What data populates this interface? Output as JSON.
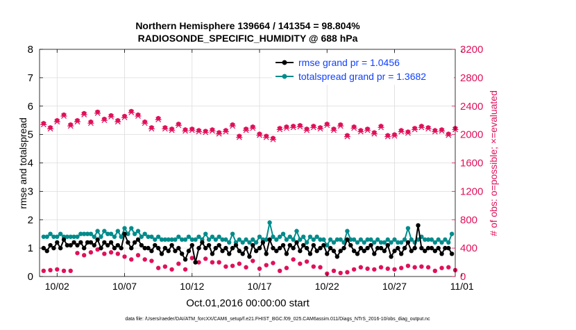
{
  "chart_data": {
    "type": "line",
    "title": [
      "Northern Hemisphere 139664 / 141354 = 98.804%",
      "RADIOSONDE_SPECIFIC_HUMIDITY @ 688 hPa"
    ],
    "xlabel": "Oct.01,2016 00:00:00 start",
    "ylabel_left": "rmse and totalspread",
    "ylabel_right": "# of obs: o=possible; ×=evaluated",
    "footer": "data file: /Users/raeder/DAI/ATM_forcXX/CAM6_setup/f.e21.FHIST_BGC.f09_025.CAM6assim.011/Diags_NTrS_2016-10/obs_diag_output.nc",
    "x_range": [
      0.7,
      31.5
    ],
    "xticks": [
      2,
      7,
      12,
      17,
      22,
      27,
      32
    ],
    "xtick_labels": [
      "10/02",
      "10/07",
      "10/12",
      "10/17",
      "10/22",
      "10/27",
      "11/01"
    ],
    "ylim_left": [
      0,
      8
    ],
    "yticks_left": [
      0,
      1,
      2,
      3,
      4,
      5,
      6,
      7,
      8
    ],
    "ylim_right": [
      0,
      3200
    ],
    "yticks_right": [
      0,
      400,
      800,
      1200,
      1600,
      2000,
      2400,
      2800,
      3200
    ],
    "grid": true,
    "legend_position": "top-right",
    "colors": {
      "rmse": "#000000",
      "totalspread": "#008b8b",
      "obs": "#e0105a",
      "legend_text": "#1040ff"
    },
    "obs_series": [
      {
        "kind": "possible",
        "marker": "o",
        "x": [
          1.0,
          1.5,
          2.0,
          2.5,
          3.0,
          3.5,
          4.0,
          4.5,
          5.0,
          5.5,
          6.0,
          6.5,
          7.0,
          7.5,
          8.0,
          8.5,
          9.0,
          9.5,
          10.0,
          10.5,
          11.0,
          11.5,
          12.0,
          12.5,
          13.0,
          13.5,
          14.0,
          14.5,
          15.0,
          15.5,
          16.0,
          16.5,
          17.0,
          17.5,
          18.0,
          18.5,
          19.0,
          19.5,
          20.0,
          20.5,
          21.0,
          21.5,
          22.0,
          22.5,
          23.0,
          23.5,
          24.0,
          24.5,
          25.0,
          25.5,
          26.0,
          26.5,
          27.0,
          27.5,
          28.0,
          28.5,
          29.0,
          29.5,
          30.0,
          30.5,
          31.0,
          31.5
        ],
        "values": [
          2160,
          2100,
          2200,
          2280,
          2140,
          2200,
          2300,
          2180,
          2320,
          2220,
          2270,
          2200,
          2260,
          2330,
          2280,
          2180,
          2100,
          2230,
          2100,
          2080,
          2150,
          2070,
          2080,
          2060,
          2050,
          2070,
          2030,
          2060,
          2140,
          1980,
          2080,
          2110,
          2010,
          1980,
          1950,
          2090,
          2110,
          2120,
          2130,
          2080,
          2120,
          2100,
          2150,
          2080,
          2140,
          1990,
          2110,
          2060,
          2080,
          2030,
          2120,
          1990,
          2000,
          2060,
          2040,
          2090,
          2120,
          2100,
          2060,
          2070,
          2010,
          2090
        ],
        "values_evaluated_hidden": true
      },
      {
        "kind": "evaluated",
        "marker": "x",
        "x": [
          1.0,
          1.5,
          2.0,
          2.5,
          3.0,
          3.5,
          4.0,
          4.5,
          5.0,
          5.5,
          6.0,
          6.5,
          7.0,
          7.5,
          8.0,
          8.5,
          9.0,
          9.5,
          10.0,
          10.5,
          11.0,
          11.5,
          12.0,
          12.5,
          13.0,
          13.5,
          14.0,
          14.5,
          15.0,
          15.5,
          16.0,
          16.5,
          17.0,
          17.5,
          18.0,
          18.5,
          19.0,
          19.5,
          20.0,
          20.5,
          21.0,
          21.5,
          22.0,
          22.5,
          23.0,
          23.5,
          24.0,
          24.5,
          25.0,
          25.5,
          26.0,
          26.5,
          27.0,
          27.5,
          28.0,
          28.5,
          29.0,
          29.5,
          30.0,
          30.5,
          31.0,
          31.5
        ],
        "values": [
          2140,
          2080,
          2180,
          2260,
          2120,
          2180,
          2280,
          2160,
          2300,
          2200,
          2250,
          2180,
          2240,
          2310,
          2260,
          2160,
          2080,
          2210,
          2080,
          2060,
          2130,
          2050,
          2060,
          2040,
          2030,
          2050,
          2010,
          2040,
          2120,
          1960,
          2060,
          2090,
          1990,
          1960,
          1930,
          2070,
          2090,
          2100,
          2110,
          2060,
          2100,
          2080,
          2130,
          2060,
          2120,
          1970,
          2090,
          2040,
          2060,
          2010,
          2100,
          1970,
          1980,
          2040,
          2020,
          2070,
          2100,
          2080,
          2040,
          2050,
          1990,
          2070
        ]
      },
      {
        "kind": "possible-low",
        "marker": "o",
        "x": [
          1.0,
          1.5,
          2.0,
          2.5,
          3.0,
          3.5,
          4.0,
          4.5,
          5.0,
          5.5,
          6.0,
          6.5,
          7.0,
          7.5,
          8.0,
          8.5,
          9.0,
          9.5,
          10.0,
          10.5,
          11.0,
          11.5,
          12.0,
          12.5,
          13.0,
          13.5,
          14.0,
          14.5,
          15.0,
          15.5,
          16.0,
          16.5,
          17.0,
          17.5,
          18.0,
          18.5,
          19.0,
          19.5,
          20.0,
          20.5,
          21.0,
          21.5,
          22.0,
          22.5,
          23.0,
          23.5,
          24.0,
          24.5,
          25.0,
          25.5,
          26.0,
          26.5,
          27.0,
          27.5,
          28.0,
          28.5,
          29.0,
          29.5,
          30.0,
          30.5,
          31.0,
          31.5
        ],
        "values": [
          80,
          90,
          100,
          80,
          80,
          330,
          300,
          340,
          380,
          320,
          340,
          320,
          280,
          240,
          300,
          240,
          220,
          120,
          140,
          100,
          180,
          100,
          260,
          200,
          250,
          200,
          200,
          140,
          150,
          180,
          130,
          220,
          110,
          160,
          190,
          80,
          120,
          240,
          180,
          210,
          140,
          130,
          40,
          80,
          50,
          60,
          100,
          130,
          110,
          100,
          130,
          110,
          100,
          120,
          150,
          130,
          140,
          130,
          80,
          120,
          130,
          90
        ]
      }
    ],
    "series": [
      {
        "name": "rmse grand pr = 1.0456",
        "marker": "o",
        "x": [
          1.0,
          1.25,
          1.5,
          1.75,
          2.0,
          2.25,
          2.5,
          2.75,
          3.0,
          3.25,
          3.5,
          3.75,
          4.0,
          4.25,
          4.5,
          4.75,
          5.0,
          5.25,
          5.5,
          5.75,
          6.0,
          6.25,
          6.5,
          6.75,
          7.0,
          7.25,
          7.5,
          7.75,
          8.0,
          8.25,
          8.5,
          8.75,
          9.0,
          9.25,
          9.5,
          9.75,
          10.0,
          10.25,
          10.5,
          10.75,
          11.0,
          11.25,
          11.5,
          11.75,
          12.0,
          12.25,
          12.5,
          12.75,
          13.0,
          13.25,
          13.5,
          13.75,
          14.0,
          14.25,
          14.5,
          14.75,
          15.0,
          15.25,
          15.5,
          15.75,
          16.0,
          16.25,
          16.5,
          16.75,
          17.0,
          17.25,
          17.5,
          17.75,
          18.0,
          18.25,
          18.5,
          18.75,
          19.0,
          19.25,
          19.5,
          19.75,
          20.0,
          20.25,
          20.5,
          20.75,
          21.0,
          21.25,
          21.5,
          21.75,
          22.0,
          22.25,
          22.5,
          22.75,
          23.0,
          23.25,
          23.5,
          23.75,
          24.0,
          24.25,
          24.5,
          24.75,
          25.0,
          25.25,
          25.5,
          25.75,
          26.0,
          26.25,
          26.5,
          26.75,
          27.0,
          27.25,
          27.5,
          27.75,
          28.0,
          28.25,
          28.5,
          28.75,
          29.0,
          29.25,
          29.5,
          29.75,
          30.0,
          30.25,
          30.5,
          30.75,
          31.0,
          31.25
        ],
        "values": [
          1.0,
          0.9,
          1.1,
          1.0,
          1.2,
          1.0,
          1.3,
          1.1,
          1.1,
          1.2,
          1.1,
          1.2,
          1.0,
          1.2,
          1.2,
          1.1,
          1.3,
          1.0,
          1.2,
          1.1,
          1.2,
          1.0,
          1.1,
          1.0,
          1.5,
          1.2,
          1.0,
          1.2,
          1.3,
          1.1,
          1.0,
          1.0,
          0.9,
          1.1,
          1.0,
          0.8,
          1.0,
          0.9,
          1.1,
          0.9,
          1.0,
          0.8,
          0.6,
          0.9,
          1.1,
          0.5,
          1.0,
          1.2,
          1.0,
          1.1,
          0.8,
          1.0,
          1.1,
          0.9,
          1.0,
          0.8,
          1.0,
          1.1,
          0.9,
          0.8,
          1.0,
          0.7,
          1.1,
          0.9,
          1.0,
          1.2,
          0.8,
          1.3,
          1.0,
          0.9,
          1.0,
          1.1,
          0.8,
          1.1,
          1.0,
          1.2,
          0.9,
          1.1,
          1.0,
          0.8,
          1.1,
          0.9,
          1.0,
          1.1,
          0.8,
          1.0,
          0.9,
          0.7,
          0.9,
          1.0,
          1.3,
          1.1,
          0.9,
          0.8,
          1.0,
          0.9,
          1.0,
          1.1,
          0.8,
          1.0,
          1.0,
          0.9,
          1.1,
          0.7,
          0.9,
          1.0,
          0.8,
          1.0,
          1.2,
          0.9,
          1.0,
          1.8,
          1.0,
          0.9,
          1.0,
          1.0,
          0.9,
          1.0,
          0.8,
          1.0,
          1.0,
          0.8
        ]
      },
      {
        "name": "totalspread grand pr = 1.3682",
        "marker": "o",
        "x": [
          1.0,
          1.25,
          1.5,
          1.75,
          2.0,
          2.25,
          2.5,
          2.75,
          3.0,
          3.25,
          3.5,
          3.75,
          4.0,
          4.25,
          4.5,
          4.75,
          5.0,
          5.25,
          5.5,
          5.75,
          6.0,
          6.25,
          6.5,
          6.75,
          7.0,
          7.25,
          7.5,
          7.75,
          8.0,
          8.25,
          8.5,
          8.75,
          9.0,
          9.25,
          9.5,
          9.75,
          10.0,
          10.25,
          10.5,
          10.75,
          11.0,
          11.25,
          11.5,
          11.75,
          12.0,
          12.25,
          12.5,
          12.75,
          13.0,
          13.25,
          13.5,
          13.75,
          14.0,
          14.25,
          14.5,
          14.75,
          15.0,
          15.25,
          15.5,
          15.75,
          16.0,
          16.25,
          16.5,
          16.75,
          17.0,
          17.25,
          17.5,
          17.75,
          18.0,
          18.25,
          18.5,
          18.75,
          19.0,
          19.25,
          19.5,
          19.75,
          20.0,
          20.25,
          20.5,
          20.75,
          21.0,
          21.25,
          21.5,
          21.75,
          22.0,
          22.25,
          22.5,
          22.75,
          23.0,
          23.25,
          23.5,
          23.75,
          24.0,
          24.25,
          24.5,
          24.75,
          25.0,
          25.25,
          25.5,
          25.75,
          26.0,
          26.25,
          26.5,
          26.75,
          27.0,
          27.25,
          27.5,
          27.75,
          28.0,
          28.25,
          28.5,
          28.75,
          29.0,
          29.25,
          29.5,
          29.75,
          30.0,
          30.25,
          30.5,
          30.75,
          31.0,
          31.25
        ],
        "values": [
          1.4,
          1.4,
          1.5,
          1.4,
          1.4,
          1.5,
          1.4,
          1.4,
          1.4,
          1.4,
          1.4,
          1.5,
          1.5,
          1.5,
          1.5,
          1.4,
          1.6,
          1.4,
          1.6,
          1.5,
          1.5,
          1.4,
          1.6,
          1.4,
          1.7,
          1.5,
          1.7,
          1.5,
          1.6,
          1.4,
          1.5,
          1.4,
          1.4,
          1.3,
          1.4,
          1.3,
          1.3,
          1.3,
          1.3,
          1.3,
          1.4,
          1.3,
          1.3,
          1.4,
          1.3,
          1.3,
          1.4,
          1.3,
          1.5,
          1.3,
          1.4,
          1.3,
          1.4,
          1.3,
          1.3,
          1.2,
          1.5,
          1.2,
          1.3,
          1.2,
          1.3,
          1.2,
          1.3,
          1.2,
          1.4,
          1.3,
          1.3,
          1.9,
          1.4,
          1.3,
          1.4,
          1.5,
          1.3,
          1.4,
          1.3,
          1.6,
          1.3,
          1.4,
          1.2,
          1.4,
          1.3,
          1.4,
          1.3,
          1.3,
          1.1,
          1.3,
          1.2,
          1.3,
          1.3,
          1.2,
          1.6,
          1.3,
          1.3,
          1.2,
          1.3,
          1.2,
          1.3,
          1.3,
          1.2,
          1.3,
          1.2,
          1.2,
          1.3,
          1.2,
          1.3,
          1.2,
          1.2,
          1.3,
          1.7,
          1.3,
          1.2,
          1.3,
          1.4,
          1.3,
          1.3,
          1.3,
          1.2,
          1.3,
          1.2,
          1.3,
          1.2,
          1.5
        ]
      }
    ]
  }
}
